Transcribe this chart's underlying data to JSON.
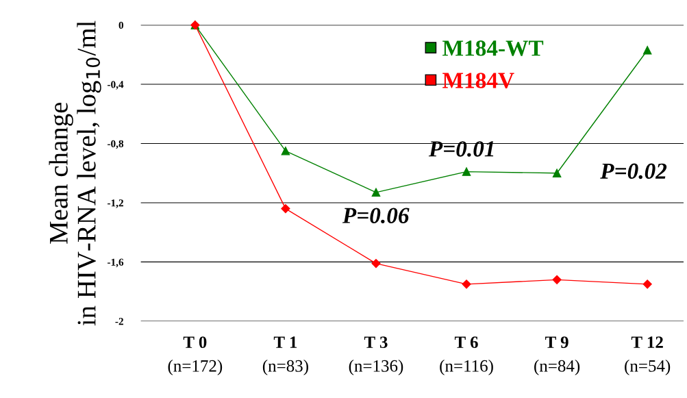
{
  "chart_data": {
    "type": "line",
    "ylabel": "Mean change\nin HIV-RNA level, log$_{10}$/ml",
    "categories": [
      "T 0\n(n=172)",
      "T 1\n(n=83)",
      "T 3\n(n=136)",
      "T 6\n(n=116)",
      "T 9\n(n=84)",
      "T 12\n(n=54)"
    ],
    "series": [
      {
        "name": "M184-WT",
        "color": "#008000",
        "marker": "triangle",
        "values": [
          0,
          -0.85,
          -1.13,
          -0.99,
          -1.0,
          -0.17
        ]
      },
      {
        "name": "M184V",
        "color": "#ff0000",
        "marker": "diamond",
        "values": [
          0,
          -1.24,
          -1.61,
          -1.75,
          -1.72,
          -1.75
        ]
      }
    ],
    "ylim": [
      -2,
      0
    ],
    "yticks": [
      {
        "value": 0,
        "label": "0"
      },
      {
        "value": -0.4,
        "label": "-0,4"
      },
      {
        "value": -0.8,
        "label": "-0,8"
      },
      {
        "value": -1.2,
        "label": "-1,2"
      },
      {
        "value": -1.6,
        "label": "-1,6"
      },
      {
        "value": -2,
        "label": "-2"
      }
    ],
    "grid": "y",
    "legend": "top right",
    "line_style": "solid",
    "annotations": [
      "P=0.06",
      "P=0.01",
      "P=0.02"
    ]
  }
}
